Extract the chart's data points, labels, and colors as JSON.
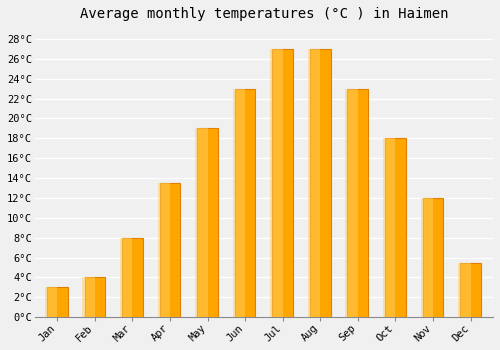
{
  "title": "Average monthly temperatures (°C ) in Haimen",
  "months": [
    "Jan",
    "Feb",
    "Mar",
    "Apr",
    "May",
    "Jun",
    "Jul",
    "Aug",
    "Sep",
    "Oct",
    "Nov",
    "Dec"
  ],
  "temperatures": [
    3.0,
    4.0,
    8.0,
    13.5,
    19.0,
    23.0,
    27.0,
    27.0,
    23.0,
    18.0,
    12.0,
    5.5
  ],
  "bar_color": "#FFA500",
  "bar_edge_color": "#E08000",
  "background_color": "#f0f0f0",
  "plot_bg_color": "#f0f0f0",
  "grid_color": "#ffffff",
  "ylim": [
    0,
    29
  ],
  "ytick_step": 2,
  "title_fontsize": 10,
  "tick_fontsize": 7.5,
  "font_family": "monospace"
}
